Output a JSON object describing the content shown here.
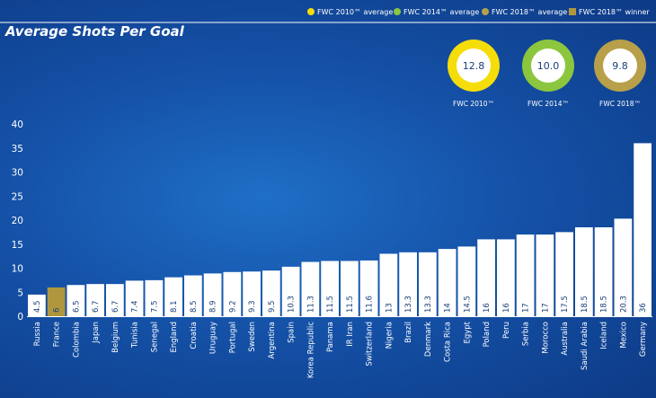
{
  "chart_data": {
    "type": "bar",
    "title": "Average Shots Per Goal",
    "categories": [
      "Russia",
      "France",
      "Colombia",
      "Japan",
      "Belgium",
      "Tunisia",
      "Senegal",
      "England",
      "Croatia",
      "Uruguay",
      "Portugal",
      "Sweden",
      "Argentina",
      "Spain",
      "Korea Republic",
      "Panama",
      "IR Iran",
      "Switzerland",
      "Nigeria",
      "Brazil",
      "Denmark",
      "Costa Rica",
      "Egypt",
      "Poland",
      "Peru",
      "Serbia",
      "Morocco",
      "Australia",
      "Saudi Arabia",
      "Iceland",
      "Mexico",
      "Germany"
    ],
    "values": [
      4.5,
      6,
      6.5,
      6.7,
      6.7,
      7.4,
      7.5,
      8.1,
      8.5,
      8.9,
      9.2,
      9.3,
      9.5,
      10.3,
      11.3,
      11.5,
      11.5,
      11.6,
      13,
      13.3,
      13.3,
      14,
      14.5,
      16,
      16,
      17,
      17,
      17.5,
      18.5,
      18.5,
      20.3,
      36
    ],
    "highlight": "France",
    "y_ticks": [
      0,
      5,
      10,
      15,
      20,
      25,
      30,
      35,
      40
    ],
    "ylim": [
      0,
      40
    ],
    "colors": {
      "bar": "#ffffff",
      "winner": "#b0973f",
      "fwc2010": "#f5dd0a",
      "fwc2014": "#8cc63f",
      "fwc2018": "#b8a04a",
      "value_text": "#1a3f7a"
    },
    "legend": [
      {
        "label": "FWC 2010™ average",
        "color": "#f5dd0a",
        "shape": "circle"
      },
      {
        "label": "FWC 2014™ average",
        "color": "#8cc63f",
        "shape": "circle"
      },
      {
        "label": "FWC 2018™ average",
        "color": "#b8a04a",
        "shape": "circle"
      },
      {
        "label": "FWC 2018™ winner",
        "color": "#b0973f",
        "shape": "square"
      }
    ],
    "averages": [
      {
        "label": "FWC 2010™",
        "value": "12.8",
        "color": "#f5dd0a"
      },
      {
        "label": "FWC 2014™",
        "value": "10.0",
        "color": "#8cc63f"
      },
      {
        "label": "FWC 2018™",
        "value": "9.8",
        "color": "#b8a04a"
      }
    ]
  }
}
